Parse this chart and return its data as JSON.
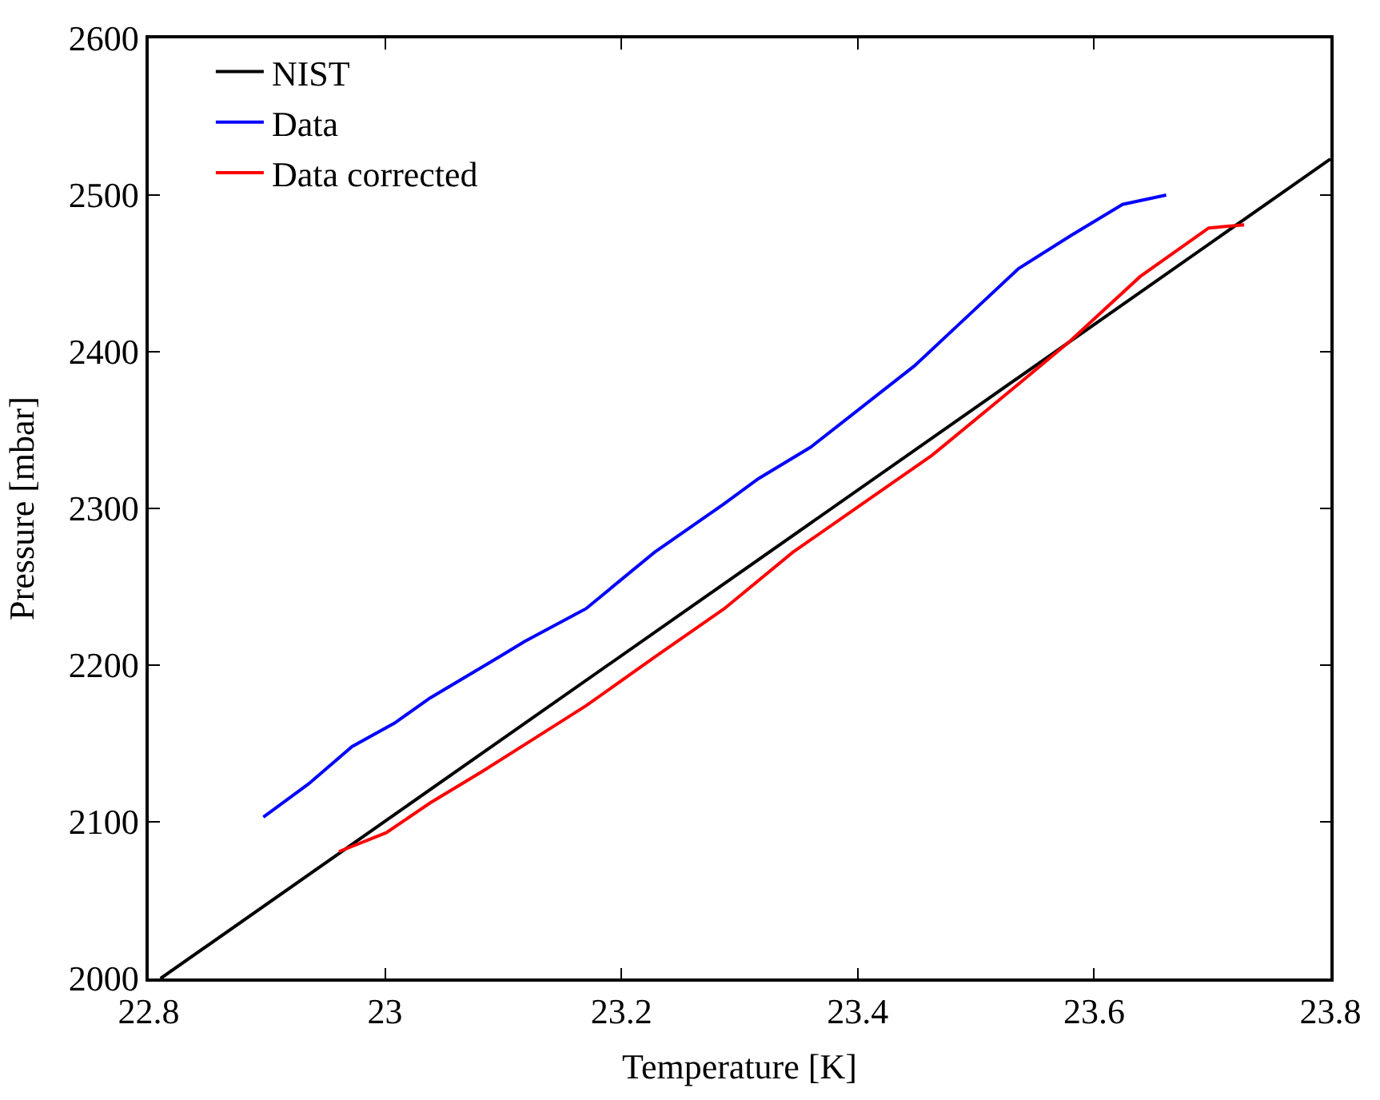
{
  "chart_data": {
    "type": "line",
    "xlabel": "Temperature [K]",
    "ylabel": "Pressure [mbar]",
    "xlim": [
      22.8,
      23.8
    ],
    "ylim": [
      2000,
      2600
    ],
    "xticks": [
      22.8,
      23,
      23.2,
      23.4,
      23.6,
      23.8
    ],
    "yticks": [
      2000,
      2100,
      2200,
      2300,
      2400,
      2500,
      2600
    ],
    "legend": "top left",
    "series": [
      {
        "name": "NIST",
        "color": "#000000",
        "x": [
          22.81,
          23.8
        ],
        "values": [
          2000,
          2523
        ]
      },
      {
        "name": "Data",
        "color": "#0000ff",
        "x": [
          22.897,
          22.935,
          22.972,
          23.008,
          23.038,
          23.096,
          23.118,
          23.17,
          23.228,
          23.287,
          23.316,
          23.36,
          23.404,
          23.448,
          23.492,
          23.536,
          23.58,
          23.624,
          23.661
        ],
        "values": [
          2103,
          2124,
          2148,
          2163,
          2179,
          2205,
          2215,
          2236,
          2272,
          2303,
          2319,
          2339,
          2365,
          2391,
          2422,
          2453,
          2474,
          2494,
          2500
        ]
      },
      {
        "name": "Data corrected",
        "color": "#ff0000",
        "x": [
          22.961,
          23.001,
          23.038,
          23.082,
          23.126,
          23.17,
          23.228,
          23.287,
          23.345,
          23.404,
          23.463,
          23.521,
          23.58,
          23.639,
          23.697,
          23.727
        ],
        "values": [
          2081,
          2093,
          2112,
          2132,
          2153,
          2174,
          2205,
          2236,
          2272,
          2303,
          2334,
          2370,
          2407,
          2448,
          2479,
          2481
        ]
      }
    ]
  }
}
